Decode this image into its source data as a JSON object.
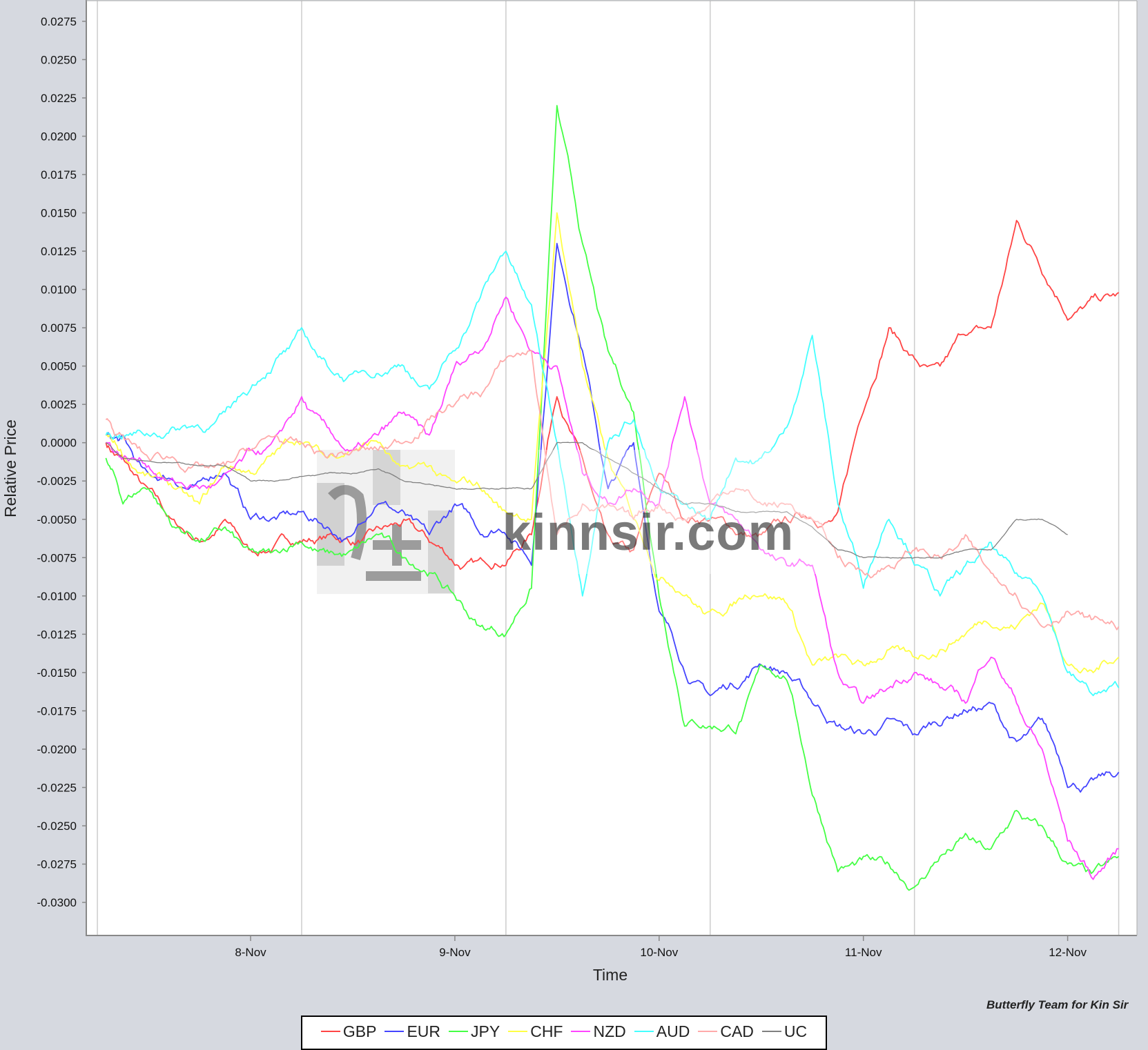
{
  "chart_data": {
    "type": "line",
    "xlabel": "Time",
    "ylabel": "Relative Price",
    "ylim": [
      -0.0315,
      0.0287
    ],
    "y_ticks": [
      "0.0275",
      "0.0250",
      "0.0225",
      "0.0200",
      "0.0175",
      "0.0150",
      "0.0125",
      "0.0100",
      "0.0075",
      "0.0050",
      "0.0025",
      "0.0000",
      "-0.0025",
      "-0.0050",
      "-0.0075",
      "-0.0100",
      "-0.0125",
      "-0.0150",
      "-0.0175",
      "-0.0200",
      "-0.0225",
      "-0.0250",
      "-0.0275",
      "-0.0300"
    ],
    "x_ticks": [
      "8-Nov",
      "9-Nov",
      "10-Nov",
      "11-Nov",
      "12-Nov"
    ],
    "grid": "vertical",
    "legend_position": "bottom",
    "x": [
      "7-Nov 07:00",
      "7-Nov 09:00",
      "7-Nov 12:00",
      "7-Nov 15:00",
      "7-Nov 18:00",
      "7-Nov 21:00",
      "8-Nov 00:00",
      "8-Nov 03:00",
      "8-Nov 06:00",
      "8-Nov 09:00",
      "8-Nov 12:00",
      "8-Nov 15:00",
      "8-Nov 18:00",
      "8-Nov 21:00",
      "9-Nov 00:00",
      "9-Nov 03:00",
      "9-Nov 06:00",
      "9-Nov 09:00",
      "9-Nov 12:00",
      "9-Nov 15:00",
      "9-Nov 18:00",
      "9-Nov 21:00",
      "10-Nov 00:00",
      "10-Nov 03:00",
      "10-Nov 06:00",
      "10-Nov 09:00",
      "10-Nov 12:00",
      "10-Nov 15:00",
      "10-Nov 18:00",
      "10-Nov 21:00",
      "11-Nov 00:00",
      "11-Nov 03:00",
      "11-Nov 06:00",
      "11-Nov 09:00",
      "11-Nov 12:00",
      "11-Nov 15:00",
      "11-Nov 18:00",
      "11-Nov 21:00",
      "12-Nov 00:00",
      "12-Nov 03:00",
      "12-Nov 06:00"
    ],
    "series": [
      {
        "name": "GBP",
        "color": "#ff4444",
        "values": [
          0.0,
          -0.001,
          -0.003,
          -0.005,
          -0.0065,
          -0.005,
          -0.007,
          -0.0065,
          -0.0065,
          -0.006,
          -0.0065,
          -0.0055,
          -0.005,
          -0.0065,
          -0.008,
          -0.0075,
          -0.008,
          -0.006,
          0.003,
          -0.001,
          -0.006,
          -0.007,
          -0.002,
          -0.005,
          -0.005,
          -0.006,
          -0.006,
          -0.005,
          -0.005,
          -0.0045,
          0.002,
          0.0075,
          0.0055,
          0.005,
          0.007,
          0.0075,
          0.0145,
          0.011,
          0.008,
          0.0095,
          0.0098
        ]
      },
      {
        "name": "EUR",
        "color": "#4444ff",
        "values": [
          0.0005,
          0.0005,
          -0.002,
          -0.0025,
          -0.0025,
          -0.002,
          -0.005,
          -0.005,
          -0.0045,
          -0.0055,
          -0.006,
          -0.004,
          -0.0045,
          -0.006,
          -0.004,
          -0.006,
          -0.006,
          -0.008,
          0.013,
          0.006,
          -0.003,
          0.0,
          -0.011,
          -0.015,
          -0.0165,
          -0.016,
          -0.0145,
          -0.015,
          -0.017,
          -0.0185,
          -0.019,
          -0.018,
          -0.019,
          -0.0185,
          -0.0175,
          -0.017,
          -0.0195,
          -0.018,
          -0.0225,
          -0.022,
          -0.0215
        ]
      },
      {
        "name": "JPY",
        "color": "#44ff44",
        "values": [
          -0.001,
          -0.004,
          -0.003,
          -0.0055,
          -0.0065,
          -0.0055,
          -0.007,
          -0.007,
          -0.0065,
          -0.007,
          -0.007,
          -0.006,
          -0.0075,
          -0.0085,
          -0.01,
          -0.012,
          -0.0125,
          -0.0095,
          0.022,
          0.013,
          0.006,
          0.002,
          -0.01,
          -0.0185,
          -0.0185,
          -0.019,
          -0.0145,
          -0.0155,
          -0.023,
          -0.028,
          -0.027,
          -0.0275,
          -0.029,
          -0.027,
          -0.0255,
          -0.0265,
          -0.024,
          -0.025,
          -0.0275,
          -0.028,
          -0.027
        ]
      },
      {
        "name": "CHF",
        "color": "#ffff44",
        "values": [
          0.0005,
          -0.001,
          -0.002,
          -0.003,
          -0.004,
          -0.0015,
          -0.002,
          -0.0005,
          0.0,
          -0.001,
          -0.0005,
          0.0,
          -0.0015,
          -0.0015,
          -0.0025,
          -0.003,
          -0.0045,
          -0.005,
          0.015,
          0.005,
          -0.001,
          -0.005,
          -0.009,
          -0.01,
          -0.011,
          -0.0105,
          -0.01,
          -0.0105,
          -0.0145,
          -0.014,
          -0.0145,
          -0.0135,
          -0.014,
          -0.0135,
          -0.0125,
          -0.012,
          -0.012,
          -0.0105,
          -0.0145,
          -0.015,
          -0.014
        ]
      },
      {
        "name": "NZD",
        "color": "#ff44ff",
        "values": [
          0.0,
          -0.001,
          -0.0015,
          -0.0025,
          -0.003,
          -0.002,
          -0.0005,
          0.0005,
          0.003,
          0.001,
          -0.0005,
          0.0005,
          0.002,
          0.0005,
          0.005,
          0.006,
          0.0095,
          0.006,
          0.005,
          -0.002,
          -0.004,
          -0.003,
          -0.004,
          0.003,
          -0.004,
          -0.005,
          -0.007,
          -0.008,
          -0.008,
          -0.015,
          -0.017,
          -0.016,
          -0.015,
          -0.016,
          -0.017,
          -0.014,
          -0.017,
          -0.02,
          -0.026,
          -0.0285,
          -0.0265
        ]
      },
      {
        "name": "AUD",
        "color": "#44ffff",
        "values": [
          0.0005,
          0.0005,
          0.0005,
          0.001,
          0.001,
          0.002,
          0.0035,
          0.0055,
          0.0075,
          0.005,
          0.0045,
          0.0045,
          0.005,
          0.0035,
          0.006,
          0.0095,
          0.0125,
          0.009,
          0.0,
          -0.01,
          0.0,
          0.0015,
          -0.003,
          -0.004,
          -0.005,
          -0.001,
          -0.001,
          0.001,
          0.007,
          -0.004,
          -0.0095,
          -0.005,
          -0.008,
          -0.01,
          -0.008,
          -0.0065,
          -0.0085,
          -0.01,
          -0.015,
          -0.0165,
          -0.016
        ]
      },
      {
        "name": "CAD",
        "color": "#ffaaaa",
        "values": [
          0.0015,
          0.0005,
          -0.001,
          -0.001,
          -0.0015,
          -0.0015,
          -0.0005,
          0.0005,
          0.0,
          -0.001,
          -0.0005,
          -0.0005,
          0.0,
          0.0015,
          0.0025,
          0.003,
          0.0055,
          0.006,
          -0.006,
          -0.004,
          -0.004,
          -0.005,
          -0.004,
          -0.005,
          -0.004,
          -0.003,
          -0.004,
          -0.004,
          -0.005,
          -0.0075,
          -0.0085,
          -0.008,
          -0.007,
          -0.0075,
          -0.006,
          -0.0085,
          -0.01,
          -0.012,
          -0.011,
          -0.0115,
          -0.012
        ]
      },
      {
        "name": "UC",
        "color": "#808080",
        "values": [
          0.0,
          -0.001,
          -0.0012,
          -0.0013,
          -0.0015,
          -0.0015,
          -0.0025,
          -0.0025,
          -0.0022,
          -0.002,
          -0.002,
          -0.0017,
          -0.0025,
          -0.0027,
          -0.003,
          -0.003,
          -0.003,
          -0.003,
          0.0,
          0.0,
          -0.001,
          -0.002,
          -0.003,
          -0.004,
          -0.004,
          -0.0045,
          -0.0045,
          -0.0045,
          -0.0055,
          -0.007,
          -0.0075,
          -0.0075,
          -0.0075,
          -0.0075,
          -0.007,
          -0.007,
          -0.005,
          -0.005,
          -0.006,
          null,
          null
        ]
      }
    ]
  },
  "credit": "Butterfly Team for Kin Sir",
  "watermark": {
    "text": "kinnsir.com"
  }
}
